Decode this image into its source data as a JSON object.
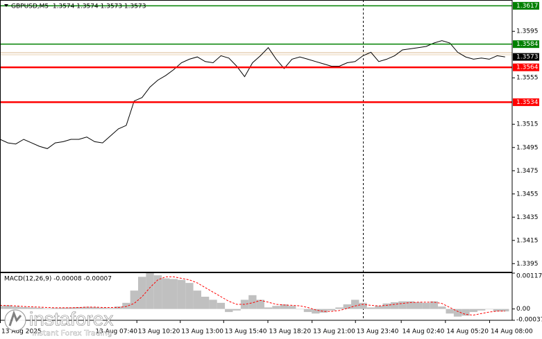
{
  "chart_data": [
    {
      "type": "line",
      "title": "GBPUSD,M5  1.3574 1.3574 1.3573 1.3573",
      "color": "#000000",
      "values": [
        1.3502,
        1.3499,
        1.3498,
        1.3502,
        1.3499,
        1.3496,
        1.3494,
        1.3499,
        1.35,
        1.3502,
        1.3502,
        1.3504,
        1.35,
        1.3499,
        1.3505,
        1.3511,
        1.3514,
        1.3535,
        1.3538,
        1.3547,
        1.3553,
        1.3557,
        1.3562,
        1.3568,
        1.3571,
        1.3573,
        1.3569,
        1.3568,
        1.3574,
        1.3572,
        1.3565,
        1.3556,
        1.3568,
        1.3574,
        1.3581,
        1.3571,
        1.3563,
        1.3571,
        1.3573,
        1.3571,
        1.3569,
        1.3567,
        1.3565,
        1.3565,
        1.3568,
        1.3569,
        1.3574,
        1.3577,
        1.3569,
        1.3571,
        1.3574,
        1.3579,
        1.358,
        1.3581,
        1.3582,
        1.3585,
        1.3587,
        1.3585,
        1.3577,
        1.3573,
        1.3571,
        1.3572,
        1.3571,
        1.3574,
        1.3573
      ],
      "xlim": [
        0,
        64.9
      ],
      "xticks": [
        {
          "value": 0,
          "label": "13 Aug 2025"
        },
        {
          "value": 11.9,
          "label": "13 Aug 07:40"
        },
        {
          "value": 17.3,
          "label": "13 Aug 10:20"
        },
        {
          "value": 22.8,
          "label": "13 Aug 13:00"
        },
        {
          "value": 28.3,
          "label": "13 Aug 15:40"
        },
        {
          "value": 33.9,
          "label": "13 Aug 18:20"
        },
        {
          "value": 39.5,
          "label": "13 Aug 21:00"
        },
        {
          "value": 45,
          "label": "13 Aug 23:40"
        },
        {
          "value": 50.8,
          "label": "14 Aug 02:40"
        },
        {
          "value": 56.4,
          "label": "14 Aug 05:20"
        },
        {
          "value": 62,
          "label": "14 Aug 08:00"
        }
      ],
      "ylim": [
        1.3388,
        1.3622
      ],
      "yticks": [
        1.3595,
        1.3555,
        1.3515,
        1.3495,
        1.3475,
        1.3455,
        1.3435,
        1.3415,
        1.3395
      ],
      "levels": [
        {
          "value": 1.3617,
          "color": "#008000"
        },
        {
          "value": 1.3584,
          "color": "#008000"
        },
        {
          "value": 1.3564,
          "color": "#ff0000"
        },
        {
          "value": 1.3534,
          "color": "#ff0000"
        }
      ],
      "last_price": 1.3573
    },
    {
      "type": "macd",
      "title": "MACD(12,26,9) -0.00008 -0.00007",
      "series": [
        {
          "color": "#c0c0c0",
          "values": [
            0.0001,
            0.00012,
            8e-05,
            6e-05,
            5e-05,
            4e-05,
            2e-05,
            3e-05,
            4e-05,
            5e-05,
            6e-05,
            7e-05,
            6e-05,
            4e-05,
            3e-05,
            8e-05,
            0.0002,
            0.0006,
            0.00105,
            0.00117,
            0.0011,
            0.001,
            0.00098,
            0.00095,
            0.00085,
            0.0006,
            0.0004,
            0.0003,
            0.0002,
            -0.0001,
            -5e-05,
            0.0003,
            0.00045,
            0.0003,
            5e-05,
            0.0001,
            0.00015,
            0.0001,
            0,
            -0.0001,
            -0.00015,
            -0.00012,
            -5e-05,
            5e-05,
            0.00015,
            0.0003,
            0.0002,
            5e-05,
            0.0001,
            0.00018,
            0.00022,
            0.00025,
            0.00025,
            0.00022,
            0.0002,
            0.00025,
            8e-05,
            -0.00015,
            -0.00025,
            -0.00022,
            -0.0001,
            -5e-05,
            0,
            -8e-05,
            -8e-05
          ]
        },
        {
          "color": "#ff0000",
          "values": [
            0.00012,
            0.00011,
            0.0001,
            8e-05,
            7e-05,
            6e-05,
            5e-05,
            4e-05,
            4e-05,
            4e-05,
            5e-05,
            6e-05,
            6e-05,
            5e-05,
            5e-05,
            5e-05,
            8e-05,
            0.00018,
            0.0004,
            0.0007,
            0.00095,
            0.00105,
            0.00105,
            0.001,
            0.00095,
            0.00085,
            0.0007,
            0.00055,
            0.0004,
            0.00025,
            0.00015,
            0.00015,
            0.0002,
            0.00028,
            0.00022,
            0.00015,
            0.00013,
            0.00012,
            0.0001,
            5e-05,
            -3e-05,
            -8e-05,
            -8e-05,
            -5e-05,
            2e-05,
            0.0001,
            0.00015,
            0.00012,
            0.0001,
            0.00012,
            0.00015,
            0.00018,
            0.00021,
            0.00022,
            0.00022,
            0.00022,
            0.00018,
            5e-05,
            -8e-05,
            -0.00018,
            -0.0002,
            -0.00015,
            -0.0001,
            -7e-05,
            -7e-05
          ]
        }
      ],
      "ylim": [
        -0.00037,
        0.00117
      ],
      "yticks": [
        0.00117,
        {
          "value": 0,
          "label": "0.00"
        },
        -0.00037
      ]
    }
  ],
  "watermark": {
    "brand": "instaforex",
    "tagline": "Instant Forex Trading"
  }
}
